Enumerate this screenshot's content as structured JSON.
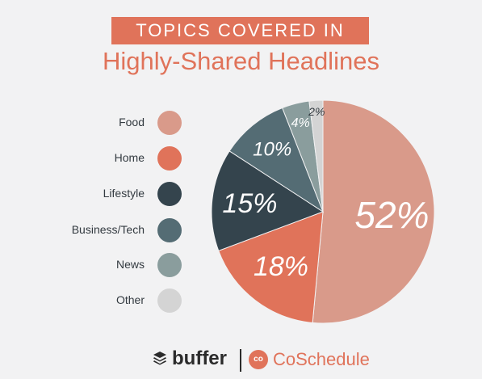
{
  "header": {
    "banner": "TOPICS COVERED IN",
    "subtitle": "Highly-Shared Headlines"
  },
  "chart_data": {
    "type": "pie",
    "categories": [
      "Food",
      "Home",
      "Lifestyle",
      "Business/Tech",
      "News",
      "Other"
    ],
    "values": [
      52,
      18,
      15,
      10,
      4,
      2
    ],
    "labels": [
      "52%",
      "18%",
      "15%",
      "10%",
      "4%",
      "2%"
    ],
    "colors": [
      "#d99a8a",
      "#e0735a",
      "#34444d",
      "#546c74",
      "#8a9d9d",
      "#d4d4d4"
    ],
    "label_colors": [
      "#ffffff",
      "#ffffff",
      "#ffffff",
      "#ffffff",
      "#ffffff",
      "#333a40"
    ],
    "legend_position": "left"
  },
  "footer": {
    "brand1": "buffer",
    "brand2": "CoSchedule",
    "brand2_icon": "co"
  }
}
